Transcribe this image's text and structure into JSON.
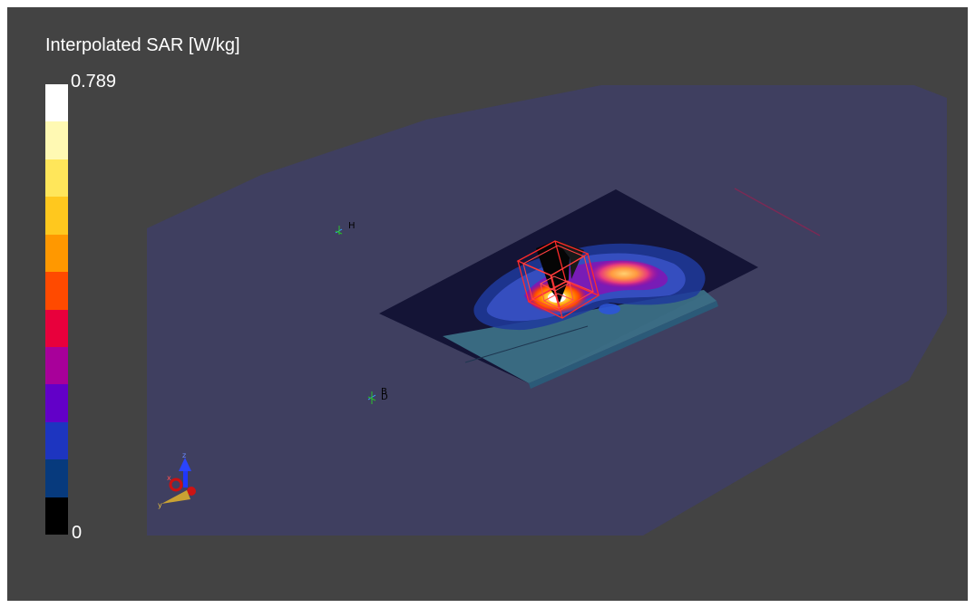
{
  "colorbar": {
    "title": "Interpolated SAR [W/kg]",
    "max_label": "0.789",
    "min_label": "0",
    "colors": [
      "#ffffff",
      "#fff9b3",
      "#ffe65a",
      "#ffc81e",
      "#ff9800",
      "#ff4a00",
      "#e8003c",
      "#a8009a",
      "#6200c8",
      "#1d35c0",
      "#073a7d",
      "#000000"
    ]
  },
  "scene": {
    "background": "#434343",
    "markers": [
      {
        "label": "H"
      },
      {
        "label": "B"
      },
      {
        "label": "D"
      }
    ],
    "axes": {
      "x": "x",
      "y": "y",
      "z": "z"
    }
  }
}
